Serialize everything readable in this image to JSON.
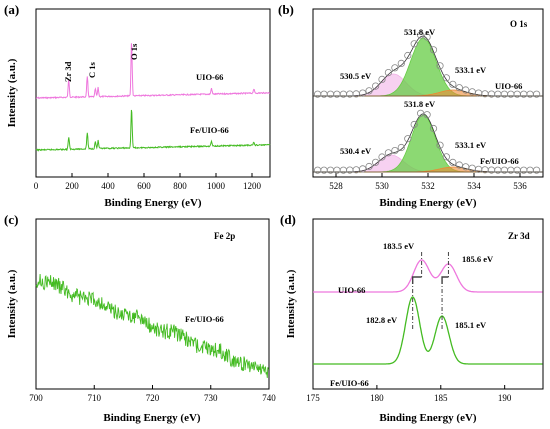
{
  "colors": {
    "pink": "#ee77dd",
    "green": "#44bb22",
    "pink_fill": "#f2b3e8",
    "green_fill": "#66cc44",
    "orange": "#ee8833",
    "circles": "#888888"
  },
  "chart_data": [
    {
      "id": "a",
      "type": "line",
      "panel_label": "(a)",
      "xlabel": "Binding Energy (eV)",
      "ylabel": "Intensity (a.u.)",
      "xlim": [
        0,
        1300
      ],
      "xticks": [
        0,
        200,
        400,
        600,
        800,
        1000,
        1200
      ],
      "peak_labels": [
        {
          "text": "Zr 3d",
          "x": 182
        },
        {
          "text": "C 1s",
          "x": 285
        },
        {
          "text": "O 1s",
          "x": 531
        }
      ],
      "series": [
        {
          "name": "UIO-66",
          "color": "pink",
          "peaks": [
            [
              182,
              18
            ],
            [
              285,
              20
            ],
            [
              330,
              8
            ],
            [
              345,
              9
            ],
            [
              531,
              55
            ],
            [
              975,
              6
            ],
            [
              1210,
              4
            ]
          ]
        },
        {
          "name": "Fe/UIO-66",
          "color": "green",
          "peaks": [
            [
              182,
              12
            ],
            [
              285,
              16
            ],
            [
              330,
              7
            ],
            [
              345,
              8
            ],
            [
              531,
              40
            ],
            [
              975,
              5
            ],
            [
              1210,
              3
            ]
          ]
        }
      ]
    },
    {
      "id": "b",
      "type": "line",
      "panel_label": "(b)",
      "title": "O 1s",
      "xlabel": "Binding Energy (eV)",
      "xlim": [
        527,
        537
      ],
      "xticks": [
        528,
        530,
        532,
        534,
        536
      ],
      "series": [
        {
          "name": "UIO-66",
          "color": "pink",
          "components": [
            {
              "label": "530.5 eV",
              "center": 530.5,
              "fill": "pink_fill"
            },
            {
              "label": "531.8 eV",
              "center": 531.8,
              "fill": "green_fill"
            },
            {
              "label": "533.1 eV",
              "center": 533.1,
              "fill": "orange"
            }
          ]
        },
        {
          "name": "Fe/UIO-66",
          "color": "green",
          "components": [
            {
              "label": "530.4 eV",
              "center": 530.4,
              "fill": "pink_fill"
            },
            {
              "label": "531.8 eV",
              "center": 531.8,
              "fill": "green_fill"
            },
            {
              "label": "533.1 eV",
              "center": 533.1,
              "fill": "orange"
            }
          ]
        }
      ]
    },
    {
      "id": "c",
      "type": "line",
      "panel_label": "(c)",
      "title": "Fe 2p",
      "xlabel": "Binding Energy (eV)",
      "ylabel": "Intensity (a.u.)",
      "xlim": [
        700,
        740
      ],
      "xticks": [
        700,
        710,
        720,
        730,
        740
      ],
      "series": [
        {
          "name": "Fe/UIO-66",
          "color": "green",
          "trend": "noisy, decreasing from 700 to 740 eV"
        }
      ]
    },
    {
      "id": "d",
      "type": "line",
      "panel_label": "(d)",
      "title": "Zr 3d",
      "xlabel": "Binding Energy (eV)",
      "ylabel": "Intensity (a.u.)",
      "xlim": [
        175,
        193
      ],
      "xticks": [
        175,
        180,
        185,
        190
      ],
      "series": [
        {
          "name": "UIO-66",
          "color": "pink",
          "peaks": [
            {
              "label": "183.5 eV",
              "x": 183.5
            },
            {
              "label": "185.6 eV",
              "x": 185.6
            }
          ]
        },
        {
          "name": "Fe/UIO-66",
          "color": "green",
          "peaks": [
            {
              "label": "182.8 eV",
              "x": 182.8
            },
            {
              "label": "185.1 eV",
              "x": 185.1
            }
          ]
        }
      ]
    }
  ]
}
